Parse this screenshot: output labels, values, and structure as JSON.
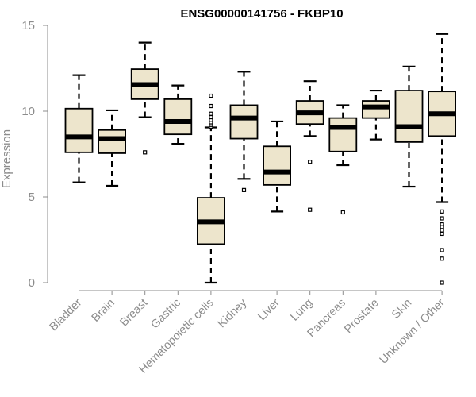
{
  "chart_data": {
    "type": "boxplot",
    "title": "ENSG00000141756 - FKBP10",
    "xlabel": "",
    "ylabel": "Expression",
    "ylim": [
      0,
      15
    ],
    "yticks": [
      0,
      5,
      10,
      15
    ],
    "box_color": "#ede5cc",
    "categories": [
      "Bladder",
      "Brain",
      "Breast",
      "Gastric",
      "Hematopoietic cells",
      "Kidney",
      "Liver",
      "Lung",
      "Pancreas",
      "Prostate",
      "Skin",
      "Unknown / Other"
    ],
    "boxes": [
      {
        "name": "Bladder",
        "whisker_low": 5.85,
        "q1": 7.6,
        "median": 8.5,
        "q3": 10.15,
        "whisker_high": 12.1,
        "outliers": []
      },
      {
        "name": "Brain",
        "whisker_low": 5.65,
        "q1": 7.55,
        "median": 8.4,
        "q3": 8.9,
        "whisker_high": 10.05,
        "outliers": []
      },
      {
        "name": "Breast",
        "whisker_low": 9.65,
        "q1": 10.7,
        "median": 11.55,
        "q3": 12.45,
        "whisker_high": 14.0,
        "outliers": [
          7.6
        ]
      },
      {
        "name": "Gastric",
        "whisker_low": 8.1,
        "q1": 8.65,
        "median": 9.4,
        "q3": 10.7,
        "whisker_high": 11.5,
        "outliers": []
      },
      {
        "name": "Hematopoietic cells",
        "whisker_low": 0.0,
        "q1": 2.25,
        "median": 3.55,
        "q3": 4.95,
        "whisker_high": 9.05,
        "outliers": [
          9.1,
          9.2,
          9.35,
          9.5,
          9.65,
          9.85,
          10.3,
          10.9
        ]
      },
      {
        "name": "Kidney",
        "whisker_low": 6.05,
        "q1": 8.4,
        "median": 9.6,
        "q3": 10.35,
        "whisker_high": 12.3,
        "outliers": [
          5.4
        ]
      },
      {
        "name": "Liver",
        "whisker_low": 4.15,
        "q1": 5.7,
        "median": 6.45,
        "q3": 7.95,
        "whisker_high": 9.4,
        "outliers": []
      },
      {
        "name": "Lung",
        "whisker_low": 8.55,
        "q1": 9.25,
        "median": 9.9,
        "q3": 10.6,
        "whisker_high": 11.75,
        "outliers": [
          7.05,
          4.25
        ]
      },
      {
        "name": "Pancreas",
        "whisker_low": 6.85,
        "q1": 7.65,
        "median": 9.05,
        "q3": 9.6,
        "whisker_high": 10.35,
        "outliers": [
          4.1
        ]
      },
      {
        "name": "Prostate",
        "whisker_low": 8.35,
        "q1": 9.6,
        "median": 10.25,
        "q3": 10.6,
        "whisker_high": 11.2,
        "outliers": []
      },
      {
        "name": "Skin",
        "whisker_low": 5.6,
        "q1": 8.2,
        "median": 9.1,
        "q3": 11.2,
        "whisker_high": 12.6,
        "outliers": []
      },
      {
        "name": "Unknown / Other",
        "whisker_low": 4.7,
        "q1": 8.55,
        "median": 9.85,
        "q3": 11.15,
        "whisker_high": 14.5,
        "outliers": [
          4.15,
          3.75,
          3.4,
          3.25,
          3.05,
          2.85,
          1.9,
          1.4,
          0.0
        ]
      }
    ]
  }
}
